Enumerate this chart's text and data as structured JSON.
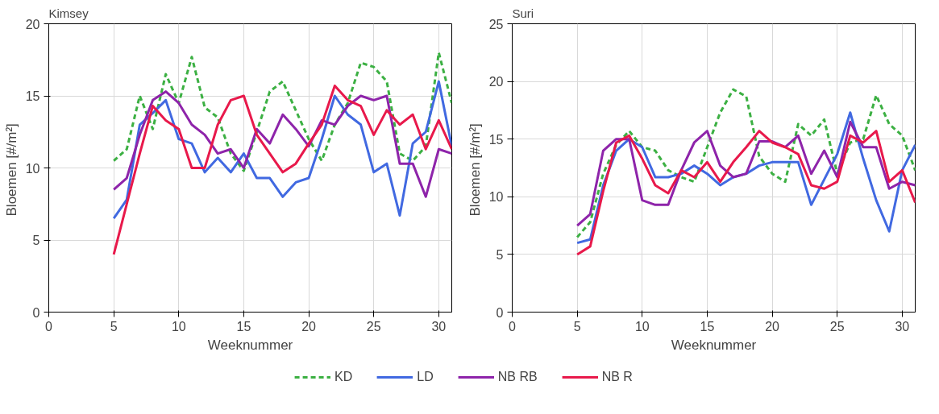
{
  "chart_data": [
    {
      "type": "line",
      "title": "Kimsey",
      "xlabel": "Weeknummer",
      "ylabel": "Bloemen  [#/m²]",
      "x": [
        5,
        6,
        7,
        8,
        9,
        10,
        11,
        12,
        13,
        14,
        15,
        16,
        17,
        18,
        19,
        20,
        21,
        22,
        23,
        24,
        25,
        26,
        27,
        28,
        29,
        30,
        31
      ],
      "xlim": [
        0,
        31
      ],
      "xticks": [
        0,
        5,
        10,
        15,
        20,
        25,
        30
      ],
      "ylim": [
        0,
        20
      ],
      "yticks": [
        0,
        5,
        10,
        15,
        20
      ],
      "grid": true,
      "legend": "bottom",
      "marker": "none",
      "series": [
        {
          "name": "KD",
          "color": "#3cb043",
          "line_style": "dashed",
          "values": [
            10.5,
            11.3,
            15,
            12.7,
            16.5,
            14.5,
            17.7,
            14.2,
            13.5,
            11,
            9.8,
            12.5,
            15.3,
            16,
            14,
            12,
            10.5,
            13,
            14.5,
            17.3,
            17,
            16,
            11,
            10.5,
            11.5,
            18,
            14.5
          ]
        },
        {
          "name": "LD",
          "color": "#4169e1",
          "line_style": "solid",
          "values": [
            6.5,
            7.8,
            13,
            13.8,
            14.7,
            12,
            11.7,
            9.7,
            10.7,
            9.7,
            11,
            9.3,
            9.3,
            8,
            9,
            9.3,
            12,
            15,
            13.7,
            13,
            9.7,
            10.3,
            6.7,
            11.7,
            12.5,
            16,
            11.5
          ]
        },
        {
          "name": "NB RB",
          "color": "#8e24aa",
          "line_style": "solid",
          "values": [
            8.5,
            9.3,
            12.3,
            14.7,
            15.3,
            14.5,
            13,
            12.3,
            11,
            11.3,
            10,
            12.7,
            11.7,
            13.7,
            12.7,
            11.5,
            13.3,
            13,
            14.3,
            15,
            14.7,
            15,
            10.3,
            10.3,
            8,
            11.3,
            11
          ]
        },
        {
          "name": "NB R",
          "color": "#e8194b",
          "line_style": "solid",
          "values": [
            4,
            7.5,
            11,
            14.3,
            13.3,
            12.7,
            10,
            10,
            13,
            14.7,
            15,
            12.3,
            11,
            9.7,
            10.3,
            11.7,
            13,
            15.7,
            14.7,
            14.3,
            12.3,
            14,
            13,
            13.7,
            11.3,
            13.3,
            11.3
          ]
        }
      ]
    },
    {
      "type": "line",
      "title": "Suri",
      "xlabel": "Weeknummer",
      "ylabel": "Bloemen  [#/m²]",
      "x": [
        5,
        6,
        7,
        8,
        9,
        10,
        11,
        12,
        13,
        14,
        15,
        16,
        17,
        18,
        19,
        20,
        21,
        22,
        23,
        24,
        25,
        26,
        27,
        28,
        29,
        30,
        31
      ],
      "xlim": [
        0,
        31
      ],
      "xticks": [
        0,
        5,
        10,
        15,
        20,
        25,
        30
      ],
      "ylim": [
        0,
        25
      ],
      "yticks": [
        0,
        5,
        10,
        15,
        20,
        25
      ],
      "grid": true,
      "marker": "none",
      "series": [
        {
          "color": "#3cb043",
          "line_style": "dashed",
          "values": [
            6.5,
            7.8,
            12,
            14.5,
            15.7,
            14.3,
            14,
            12.3,
            11.7,
            11.3,
            14.3,
            17.3,
            19.3,
            18.7,
            13.5,
            12,
            11.3,
            16.3,
            15.3,
            16.7,
            12,
            14.7,
            15,
            18.8,
            16.3,
            15.3,
            12.3
          ]
        },
        {
          "color": "#4169e1",
          "line_style": "solid",
          "values": [
            6,
            6.3,
            11,
            14,
            15,
            14.3,
            11.7,
            11.7,
            12,
            12.7,
            12,
            11,
            11.7,
            12,
            12.7,
            13,
            13,
            13,
            9.3,
            11.5,
            13.7,
            17.3,
            13.3,
            9.7,
            7,
            12.3,
            14.5
          ]
        },
        {
          "color": "#8e24aa",
          "line_style": "solid",
          "values": [
            7.5,
            8.5,
            14,
            15,
            15,
            9.7,
            9.3,
            9.3,
            12.3,
            14.7,
            15.7,
            12.7,
            11.7,
            12,
            14.8,
            14.8,
            14.3,
            15.3,
            12,
            14,
            11.7,
            16.5,
            14.3,
            14.3,
            10.7,
            11.3,
            11
          ]
        },
        {
          "color": "#e8194b",
          "line_style": "solid",
          "values": [
            5,
            5.7,
            10.5,
            14.7,
            15.3,
            13.3,
            11,
            10.3,
            12.3,
            11.7,
            13,
            11.3,
            13,
            14.3,
            15.7,
            14.7,
            14.3,
            13.7,
            11,
            10.7,
            11.3,
            15.3,
            14.7,
            15.7,
            11.3,
            12.3,
            9.5
          ]
        }
      ]
    }
  ]
}
